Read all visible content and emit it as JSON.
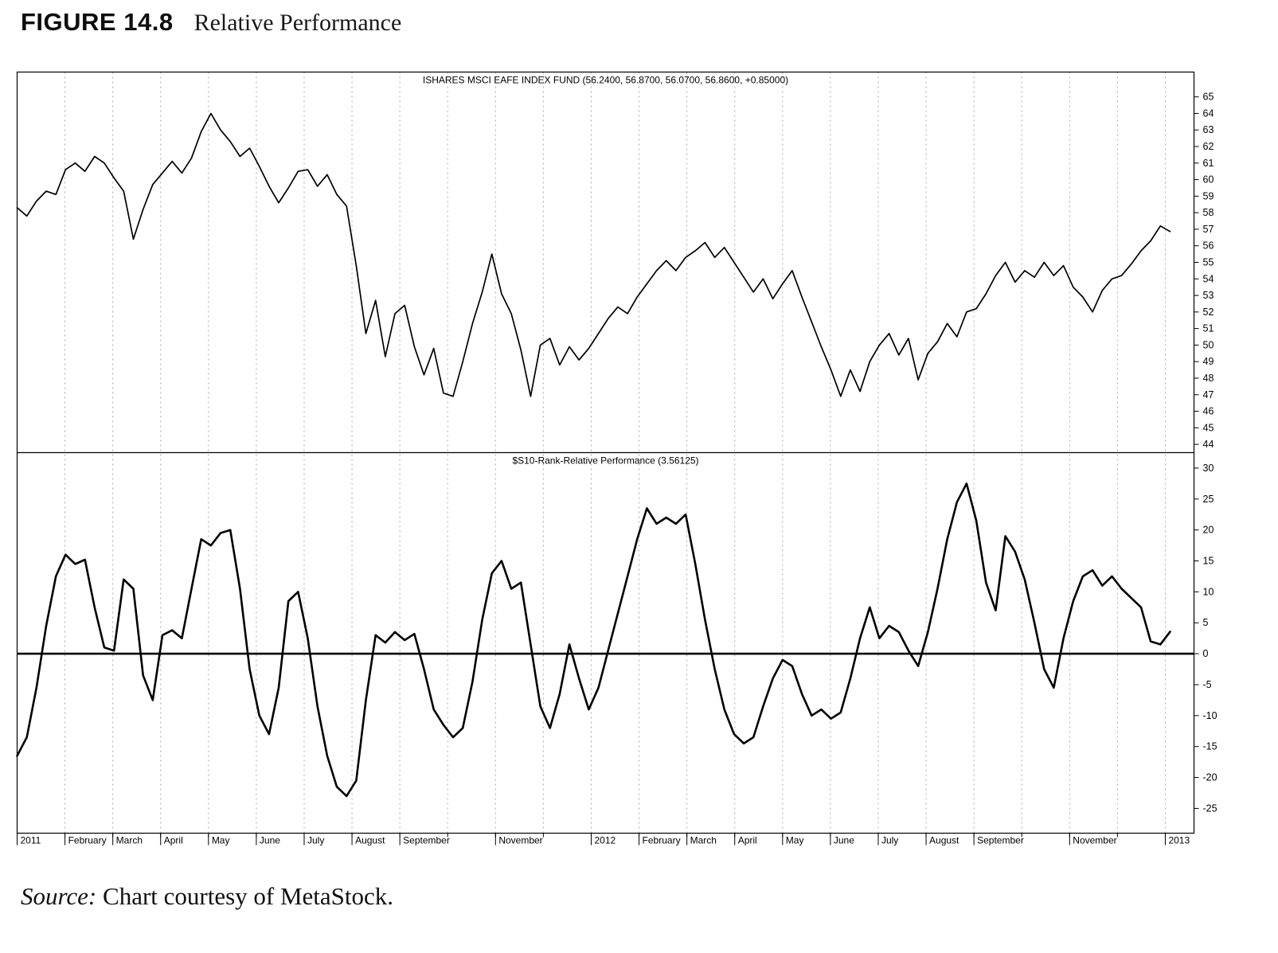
{
  "figure": {
    "label": "FIGURE 14.8",
    "title": "Relative Performance"
  },
  "source": {
    "prefix": "Source:",
    "text": " Chart courtesy of MetaStock."
  },
  "chart_data": {
    "type": "line",
    "style": {
      "line_color": "#000000",
      "grid_color": "#aaaaaa",
      "frame_color": "#000000",
      "background": "#ffffff"
    },
    "x_axis": {
      "months_total": 24.6,
      "data_month_span": [
        0,
        24.1
      ],
      "gridline_months": [
        1,
        2,
        3,
        4,
        5,
        6,
        7,
        8,
        9,
        10,
        11,
        12,
        13,
        14,
        15,
        16,
        17,
        18,
        19,
        20,
        21,
        22,
        23,
        24
      ],
      "labels": [
        {
          "text": "2011",
          "month": 0
        },
        {
          "text": "February",
          "month": 1
        },
        {
          "text": "March",
          "month": 2
        },
        {
          "text": "April",
          "month": 3
        },
        {
          "text": "May",
          "month": 4
        },
        {
          "text": "June",
          "month": 5
        },
        {
          "text": "July",
          "month": 6
        },
        {
          "text": "August",
          "month": 7
        },
        {
          "text": "September",
          "month": 8
        },
        {
          "text": "November",
          "month": 10
        },
        {
          "text": "2012",
          "month": 12
        },
        {
          "text": "February",
          "month": 13
        },
        {
          "text": "March",
          "month": 14
        },
        {
          "text": "April",
          "month": 15
        },
        {
          "text": "May",
          "month": 16
        },
        {
          "text": "June",
          "month": 17
        },
        {
          "text": "July",
          "month": 18
        },
        {
          "text": "August",
          "month": 19
        },
        {
          "text": "September",
          "month": 20
        },
        {
          "text": "November",
          "month": 22
        },
        {
          "text": "2013",
          "month": 24
        }
      ]
    },
    "panels": [
      {
        "name": "price-panel",
        "title": "ISHARES MSCI EAFE INDEX FUND (56.2400, 56.8700, 56.0700, 56.8600, +0.85000)",
        "ylim": [
          43.5,
          66.5
        ],
        "yticks": [
          65,
          64,
          63,
          62,
          61,
          60,
          59,
          58,
          57,
          56,
          55,
          54,
          53,
          52,
          51,
          50,
          49,
          48,
          47,
          46,
          45,
          44
        ],
        "zero_line": null,
        "series": [
          {
            "name": "ishares-msci-eafe-index-fund",
            "color": "#000000",
            "width": 1.7,
            "values": [
              58.3,
              57.8,
              58.7,
              59.3,
              59.1,
              60.6,
              61.0,
              60.5,
              61.4,
              61.0,
              60.1,
              59.3,
              56.4,
              58.2,
              59.7,
              60.4,
              61.1,
              60.4,
              61.3,
              62.9,
              64.0,
              63.0,
              62.3,
              61.4,
              61.9,
              60.8,
              59.6,
              58.6,
              59.5,
              60.5,
              60.6,
              59.6,
              60.3,
              59.1,
              58.4,
              54.8,
              50.7,
              52.7,
              49.3,
              51.9,
              52.4,
              49.9,
              48.2,
              49.8,
              47.1,
              46.9,
              49.0,
              51.3,
              53.2,
              55.5,
              53.1,
              51.9,
              49.7,
              46.9,
              50.0,
              50.4,
              48.8,
              49.9,
              49.1,
              49.8,
              50.7,
              51.6,
              52.3,
              51.9,
              52.9,
              53.7,
              54.5,
              55.1,
              54.5,
              55.3,
              55.7,
              56.2,
              55.3,
              55.9,
              55.0,
              54.1,
              53.2,
              54.0,
              52.8,
              53.7,
              54.5,
              52.9,
              51.4,
              49.9,
              48.5,
              46.9,
              48.5,
              47.2,
              49.0,
              50.0,
              50.7,
              49.4,
              50.4,
              47.9,
              49.5,
              50.2,
              51.3,
              50.5,
              52.0,
              52.2,
              53.1,
              54.2,
              55.0,
              53.8,
              54.5,
              54.1,
              55.0,
              54.2,
              54.8,
              53.5,
              52.9,
              52.0,
              53.3,
              54.0,
              54.2,
              54.9,
              55.7,
              56.3,
              57.2,
              56.86
            ]
          }
        ]
      },
      {
        "name": "relative-performance-panel",
        "title": "$S10-Rank-Relative Performance (3.56125)",
        "ylim": [
          -29.0,
          32.5
        ],
        "yticks": [
          30,
          25,
          20,
          15,
          10,
          5,
          0,
          -5,
          -10,
          -15,
          -20,
          -25
        ],
        "zero_line": 0,
        "series": [
          {
            "name": "s10-rank-relative-performance",
            "color": "#000000",
            "width": 2.6,
            "values": [
              -16.5,
              -13.5,
              -5.5,
              4.5,
              12.5,
              16.0,
              14.5,
              15.2,
              7.5,
              1.0,
              0.5,
              12.0,
              10.5,
              -3.5,
              -7.5,
              3.0,
              3.8,
              2.5,
              10.5,
              18.5,
              17.5,
              19.5,
              20.0,
              10.5,
              -2.5,
              -10.0,
              -13.0,
              -5.5,
              8.5,
              10.0,
              2.5,
              -8.5,
              -16.5,
              -21.5,
              -23.0,
              -20.5,
              -7.5,
              3.0,
              1.8,
              3.5,
              2.2,
              3.2,
              -2.5,
              -9.0,
              -11.5,
              -13.5,
              -12.0,
              -4.5,
              5.5,
              13.0,
              15.0,
              10.5,
              11.5,
              1.5,
              -8.5,
              -12.0,
              -6.5,
              1.5,
              -4.0,
              -9.0,
              -5.5,
              0.5,
              6.5,
              12.5,
              18.5,
              23.5,
              21.0,
              22.0,
              21.0,
              22.5,
              14.5,
              5.5,
              -2.5,
              -9.0,
              -13.0,
              -14.5,
              -13.5,
              -8.5,
              -4.0,
              -1.0,
              -2.0,
              -6.5,
              -10.0,
              -9.0,
              -10.5,
              -9.5,
              -4.0,
              2.5,
              7.5,
              2.5,
              4.5,
              3.5,
              0.5,
              -2.0,
              3.5,
              10.5,
              18.5,
              24.5,
              27.5,
              21.5,
              11.5,
              7.0,
              19.0,
              16.5,
              12.0,
              5.0,
              -2.5,
              -5.5,
              2.5,
              8.5,
              12.5,
              13.5,
              11.0,
              12.5,
              10.5,
              9.0,
              7.5,
              2.0,
              1.5,
              3.56125
            ]
          }
        ]
      }
    ]
  }
}
